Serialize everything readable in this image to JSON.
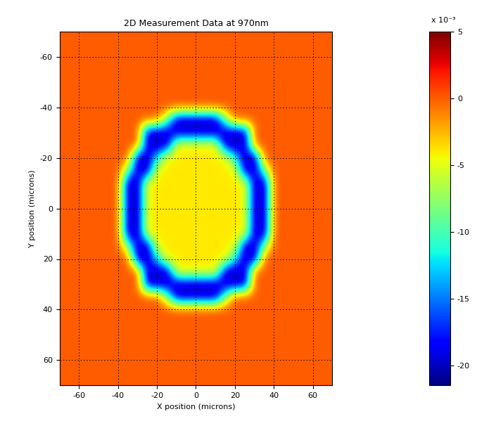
{
  "chart_data": {
    "type": "heatmap",
    "title": "2D Measurement Data at 970nm",
    "x_label": "X position (microns)",
    "y_label": "Y position (microns)",
    "xlim": [
      -70,
      70
    ],
    "ylim": [
      70,
      -70
    ],
    "xticks": [
      -60,
      -40,
      -20,
      0,
      20,
      40,
      60
    ],
    "yticks": [
      -60,
      -40,
      -20,
      0,
      20,
      40,
      60
    ],
    "grid": true,
    "color": "jet",
    "x": [
      -70,
      -65,
      -60,
      -55,
      -50,
      -45,
      -40,
      -35,
      -30,
      -25,
      -20,
      -15,
      -10,
      -5,
      0,
      5,
      10,
      15,
      20,
      25,
      30,
      35,
      40,
      45,
      50,
      55,
      60,
      65,
      70
    ],
    "y": [
      -70,
      -65,
      -60,
      -55,
      -50,
      -45,
      -40,
      -35,
      -30,
      -25,
      -20,
      -15,
      -10,
      -5,
      0,
      5,
      10,
      15,
      20,
      25,
      30,
      35,
      40,
      45,
      50,
      55,
      60,
      65,
      70
    ],
    "values": [
      [
        0,
        0,
        0,
        0,
        0,
        0,
        0,
        0,
        0,
        0,
        0,
        0,
        0,
        0,
        0,
        0,
        0,
        0,
        0,
        0,
        0,
        0,
        0,
        0,
        0,
        0,
        0,
        0,
        0
      ],
      [
        0,
        0,
        0,
        0,
        0,
        0,
        0,
        0,
        0,
        0,
        0,
        0,
        0,
        0,
        0,
        0,
        0,
        0,
        0,
        0,
        0,
        0,
        0,
        0,
        0,
        0,
        0,
        0,
        0
      ],
      [
        0,
        0,
        0,
        0,
        0,
        0,
        0,
        0,
        0,
        0,
        0,
        0,
        0,
        0,
        0,
        0,
        0,
        0,
        0,
        0,
        0,
        0,
        0,
        0,
        0,
        0,
        0,
        0,
        0
      ],
      [
        0,
        0,
        0,
        0,
        0,
        0,
        0,
        0,
        0,
        0,
        0,
        0,
        0,
        0,
        0,
        0,
        0,
        0,
        0,
        0,
        0,
        0,
        0,
        0,
        0,
        0,
        0,
        0,
        0
      ],
      [
        0,
        0,
        0,
        0,
        0,
        0,
        0,
        0,
        0,
        0,
        0,
        0,
        0,
        0,
        0,
        0,
        0,
        0,
        0,
        0,
        0,
        0,
        0,
        0,
        0,
        0,
        0,
        0,
        0
      ],
      [
        0,
        0,
        0,
        0,
        0,
        0,
        0,
        0,
        0,
        0,
        0,
        0,
        0,
        0,
        0,
        0,
        0,
        0,
        0,
        0,
        0,
        0,
        0,
        0,
        0,
        0,
        0,
        0,
        0
      ],
      [
        0,
        0,
        0,
        0,
        0,
        0,
        0,
        0,
        0,
        0,
        0,
        0,
        0,
        0,
        0,
        0,
        0,
        0,
        0,
        0,
        0,
        0,
        0,
        0,
        0,
        0,
        0,
        0,
        0
      ],
      [
        0,
        0,
        0,
        0,
        0,
        0,
        0,
        0,
        0,
        0,
        0,
        -8,
        -20,
        -20,
        -20,
        -20,
        -20,
        -8,
        0,
        0,
        0,
        0,
        0,
        0,
        0,
        0,
        0,
        0,
        0
      ],
      [
        0,
        0,
        0,
        0,
        0,
        0,
        0,
        0,
        0,
        -20,
        -20,
        -20,
        -20,
        -20,
        -20,
        -20,
        -20,
        -20,
        -20,
        -20,
        0,
        0,
        0,
        0,
        0,
        0,
        0,
        0,
        0
      ],
      [
        0,
        0,
        0,
        0,
        0,
        0,
        0,
        0,
        0,
        -20,
        -20,
        -20,
        -4,
        -4,
        -4,
        -4,
        -4,
        -20,
        -20,
        -20,
        0,
        0,
        0,
        0,
        0,
        0,
        0,
        0,
        0
      ],
      [
        0,
        0,
        0,
        0,
        0,
        0,
        0,
        0,
        -20,
        -20,
        -12,
        -4,
        -4,
        -4,
        -4,
        -4,
        -4,
        -4,
        -12,
        -20,
        -20,
        0,
        0,
        0,
        0,
        0,
        0,
        0,
        0
      ],
      [
        0,
        0,
        0,
        0,
        0,
        0,
        0,
        -8,
        -20,
        -20,
        -4,
        -4,
        -4,
        -4,
        -4,
        -4,
        -4,
        -4,
        -4,
        -20,
        -20,
        -8,
        0,
        0,
        0,
        0,
        0,
        0,
        0
      ],
      [
        0,
        0,
        0,
        0,
        0,
        0,
        0,
        -20,
        -20,
        -4,
        -4,
        -4,
        -4,
        -4,
        -4,
        -4,
        -4,
        -4,
        -4,
        -4,
        -20,
        -20,
        0,
        0,
        0,
        0,
        0,
        0,
        0
      ],
      [
        0,
        0,
        0,
        0,
        0,
        0,
        0,
        -20,
        -20,
        -4,
        -4,
        -4,
        -4,
        -4,
        -4,
        -4,
        -4,
        -4,
        -4,
        -4,
        -20,
        -20,
        0,
        0,
        0,
        0,
        0,
        0,
        0
      ],
      [
        0,
        0,
        0,
        0,
        0,
        0,
        0,
        -20,
        -20,
        -4,
        -4,
        -4,
        -4,
        -4,
        -4,
        -4,
        -4,
        -4,
        -4,
        -4,
        -20,
        -20,
        0,
        0,
        0,
        0,
        0,
        0,
        0
      ],
      [
        0,
        0,
        0,
        0,
        0,
        0,
        0,
        -20,
        -20,
        -4,
        -4,
        -4,
        -4,
        -4,
        -4,
        -4,
        -4,
        -4,
        -4,
        -4,
        -20,
        -20,
        0,
        0,
        0,
        0,
        0,
        0,
        0
      ],
      [
        0,
        0,
        0,
        0,
        0,
        0,
        0,
        -20,
        -20,
        -4,
        -4,
        -4,
        -4,
        -4,
        -4,
        -4,
        -4,
        -4,
        -4,
        -4,
        -20,
        -20,
        0,
        0,
        0,
        0,
        0,
        0,
        0
      ],
      [
        0,
        0,
        0,
        0,
        0,
        0,
        0,
        -8,
        -20,
        -20,
        -4,
        -4,
        -4,
        -4,
        -4,
        -4,
        -4,
        -4,
        -4,
        -20,
        -20,
        -8,
        0,
        0,
        0,
        0,
        0,
        0,
        0
      ],
      [
        0,
        0,
        0,
        0,
        0,
        0,
        0,
        0,
        -20,
        -20,
        -12,
        -4,
        -4,
        -4,
        -4,
        -4,
        -4,
        -4,
        -12,
        -20,
        -20,
        0,
        0,
        0,
        0,
        0,
        0,
        0,
        0
      ],
      [
        0,
        0,
        0,
        0,
        0,
        0,
        0,
        0,
        0,
        -20,
        -20,
        -20,
        -4,
        -4,
        -4,
        -4,
        -4,
        -20,
        -20,
        -20,
        0,
        0,
        0,
        0,
        0,
        0,
        0,
        0,
        0
      ],
      [
        0,
        0,
        0,
        0,
        0,
        0,
        0,
        0,
        0,
        -20,
        -20,
        -20,
        -20,
        -20,
        -20,
        -20,
        -20,
        -20,
        -20,
        -20,
        0,
        0,
        0,
        0,
        0,
        0,
        0,
        0,
        0
      ],
      [
        0,
        0,
        0,
        0,
        0,
        0,
        0,
        0,
        0,
        0,
        0,
        -8,
        -20,
        -20,
        -20,
        -20,
        -20,
        -8,
        0,
        0,
        0,
        0,
        0,
        0,
        0,
        0,
        0,
        0,
        0
      ],
      [
        0,
        0,
        0,
        0,
        0,
        0,
        0,
        0,
        0,
        0,
        0,
        0,
        0,
        0,
        0,
        0,
        0,
        0,
        0,
        0,
        0,
        0,
        0,
        0,
        0,
        0,
        0,
        0,
        0
      ],
      [
        0,
        0,
        0,
        0,
        0,
        0,
        0,
        0,
        0,
        0,
        0,
        0,
        0,
        0,
        0,
        0,
        0,
        0,
        0,
        0,
        0,
        0,
        0,
        0,
        0,
        0,
        0,
        0,
        0
      ],
      [
        0,
        0,
        0,
        0,
        0,
        0,
        0,
        0,
        0,
        0,
        0,
        0,
        0,
        0,
        0,
        0,
        0,
        0,
        0,
        0,
        0,
        0,
        0,
        0,
        0,
        0,
        0,
        0,
        0
      ],
      [
        0,
        0,
        0,
        0,
        0,
        0,
        0,
        0,
        0,
        0,
        0,
        0,
        0,
        0,
        0,
        0,
        0,
        0,
        0,
        0,
        0,
        0,
        0,
        0,
        0,
        0,
        0,
        0,
        0
      ],
      [
        0,
        0,
        0,
        0,
        0,
        0,
        0,
        0,
        0,
        0,
        0,
        0,
        0,
        0,
        0,
        0,
        0,
        0,
        0,
        0,
        0,
        0,
        0,
        0,
        0,
        0,
        0,
        0,
        0
      ],
      [
        0,
        0,
        0,
        0,
        0,
        0,
        0,
        0,
        0,
        0,
        0,
        0,
        0,
        0,
        0,
        0,
        0,
        0,
        0,
        0,
        0,
        0,
        0,
        0,
        0,
        0,
        0,
        0,
        0
      ],
      [
        0,
        0,
        0,
        0,
        0,
        0,
        0,
        0,
        0,
        0,
        0,
        0,
        0,
        0,
        0,
        0,
        0,
        0,
        0,
        0,
        0,
        0,
        0,
        0,
        0,
        0,
        0,
        0,
        0
      ]
    ],
    "colorbar_range": [
      -21.5,
      5
    ],
    "colorbar_ticks": [
      -20,
      -15,
      -10,
      -5,
      0,
      5
    ],
    "colorbar_note": "x 10⁻³"
  }
}
